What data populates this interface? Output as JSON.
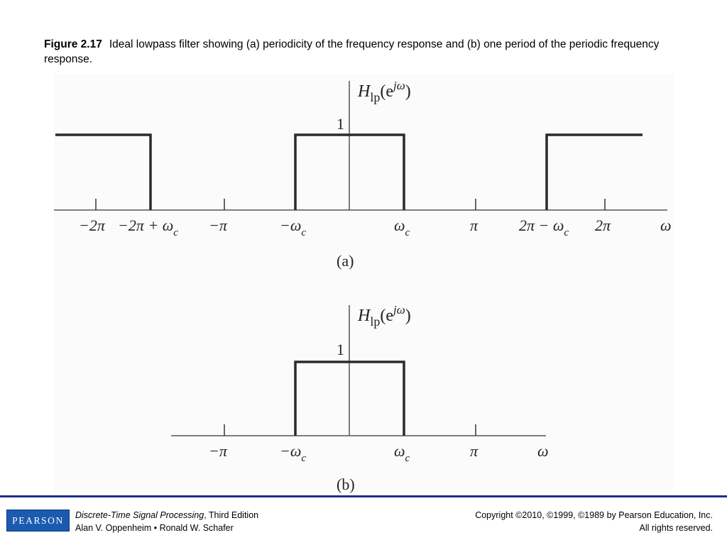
{
  "caption": {
    "figure_label": "Figure 2.17",
    "text": "Ideal lowpass filter showing (a) periodicity of the frequency response and (b) one period of the periodic frequency response."
  },
  "figure": {
    "title_func": "H",
    "title_sub": "lp",
    "title_arg_open": "(e",
    "title_sup": "jω",
    "title_arg_close": ")",
    "one_label": "1",
    "panel_a": {
      "label": "(a)",
      "ticks": [
        "−2π",
        "−2π + ω",
        "−π",
        "−ω",
        "ω",
        "π",
        "2π − ω",
        "2π"
      ],
      "tick_subs": [
        "",
        "c",
        "",
        "c",
        "c",
        "",
        "c",
        ""
      ],
      "axis_label": "ω"
    },
    "panel_b": {
      "label": "(b)",
      "ticks": [
        "−π",
        "−ω",
        "ω",
        "π"
      ],
      "tick_subs": [
        "",
        "c",
        "c",
        ""
      ],
      "axis_label": "ω"
    }
  },
  "footer": {
    "logo": "PEARSON",
    "book_title": "Discrete-Time Signal Processing",
    "edition": ", Third Edition",
    "authors": "Alan V. Oppenheim • Ronald W. Schafer",
    "copyright": "Copyright ©2010, ©1999, ©1989 by Pearson Education, Inc.",
    "rights": "All rights reserved."
  }
}
